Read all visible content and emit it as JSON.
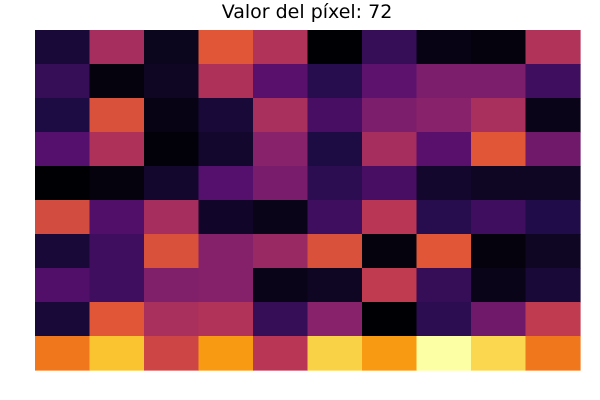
{
  "chart_data": {
    "type": "heatmap",
    "title": "Valor del píxel: 72",
    "rows": 10,
    "cols": 10,
    "colorscale": "inferno",
    "grid": false,
    "axes_visible": false,
    "values": [
      [
        0.1,
        0.45,
        0.05,
        0.62,
        0.48,
        0.0,
        0.18,
        0.03,
        0.02,
        0.48
      ],
      [
        0.18,
        0.02,
        0.06,
        0.47,
        0.26,
        0.15,
        0.27,
        0.35,
        0.35,
        0.2
      ],
      [
        0.12,
        0.6,
        0.03,
        0.1,
        0.46,
        0.22,
        0.35,
        0.38,
        0.46,
        0.04
      ],
      [
        0.25,
        0.47,
        0.01,
        0.08,
        0.38,
        0.12,
        0.45,
        0.26,
        0.62,
        0.32
      ],
      [
        0.0,
        0.02,
        0.08,
        0.25,
        0.34,
        0.16,
        0.22,
        0.08,
        0.06,
        0.06
      ],
      [
        0.58,
        0.24,
        0.45,
        0.07,
        0.04,
        0.2,
        0.5,
        0.15,
        0.2,
        0.13
      ],
      [
        0.1,
        0.2,
        0.6,
        0.37,
        0.42,
        0.6,
        0.02,
        0.62,
        0.02,
        0.06
      ],
      [
        0.24,
        0.2,
        0.36,
        0.37,
        0.04,
        0.06,
        0.52,
        0.18,
        0.04,
        0.1
      ],
      [
        0.1,
        0.62,
        0.46,
        0.48,
        0.18,
        0.38,
        0.0,
        0.16,
        0.32,
        0.52
      ],
      [
        0.7,
        0.87,
        0.56,
        0.78,
        0.5,
        0.9,
        0.78,
        1.0,
        0.91,
        0.7
      ]
    ]
  }
}
